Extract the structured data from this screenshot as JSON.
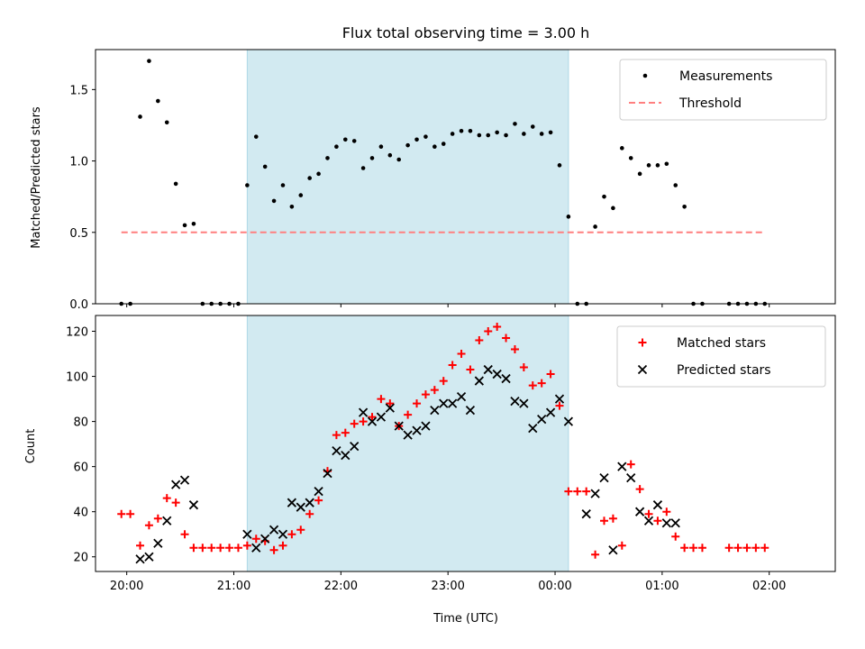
{
  "chart_data": {
    "type": "scatter",
    "title": "Flux total observing time = 3.00 h",
    "xlabel": "Time (UTC)",
    "x_unit": "minutes after 20:00 UTC",
    "xlim": [
      -17.5,
      397
    ],
    "xticks": [
      {
        "value": 0,
        "label": "20:00"
      },
      {
        "value": 60,
        "label": "21:00"
      },
      {
        "value": 120,
        "label": "22:00"
      },
      {
        "value": 180,
        "label": "23:00"
      },
      {
        "value": 240,
        "label": "00:00"
      },
      {
        "value": 300,
        "label": "01:00"
      },
      {
        "value": 360,
        "label": "02:00"
      }
    ],
    "observing_window": {
      "start": 67.5,
      "end": 247.5,
      "color": "#add8e6"
    },
    "panels": [
      {
        "ylabel": "Matched/Predicted stars",
        "ylim": [
          0,
          1.78
        ],
        "yticks": [
          {
            "value": 0,
            "label": "0.0"
          },
          {
            "value": 0.5,
            "label": "0.5"
          },
          {
            "value": 1.0,
            "label": "1.0"
          },
          {
            "value": 1.5,
            "label": "1.5"
          }
        ],
        "legend": {
          "position": "top-right"
        },
        "series": [
          {
            "name": "Measurements",
            "marker": "dot",
            "color": "#000000",
            "points": [
              [
                -3,
                0
              ],
              [
                2,
                0
              ],
              [
                7.5,
                1.31
              ],
              [
                12.5,
                1.7
              ],
              [
                17.5,
                1.42
              ],
              [
                22.5,
                1.27
              ],
              [
                27.5,
                0.84
              ],
              [
                32.5,
                0.55
              ],
              [
                37.5,
                0.56
              ],
              [
                42.5,
                0
              ],
              [
                47.5,
                0
              ],
              [
                52.5,
                0
              ],
              [
                57.5,
                0
              ],
              [
                62.5,
                0
              ],
              [
                67.5,
                0.83
              ],
              [
                72.5,
                1.17
              ],
              [
                77.5,
                0.96
              ],
              [
                82.5,
                0.72
              ],
              [
                87.5,
                0.83
              ],
              [
                92.5,
                0.68
              ],
              [
                97.5,
                0.76
              ],
              [
                102.5,
                0.88
              ],
              [
                107.5,
                0.91
              ],
              [
                112.5,
                1.02
              ],
              [
                117.5,
                1.1
              ],
              [
                122.5,
                1.15
              ],
              [
                127.5,
                1.14
              ],
              [
                132.5,
                0.95
              ],
              [
                137.5,
                1.02
              ],
              [
                142.5,
                1.1
              ],
              [
                147.5,
                1.04
              ],
              [
                152.5,
                1.01
              ],
              [
                157.5,
                1.11
              ],
              [
                162.5,
                1.15
              ],
              [
                167.5,
                1.17
              ],
              [
                172.5,
                1.1
              ],
              [
                177.5,
                1.12
              ],
              [
                182.5,
                1.19
              ],
              [
                187.5,
                1.21
              ],
              [
                192.5,
                1.21
              ],
              [
                197.5,
                1.18
              ],
              [
                202.5,
                1.18
              ],
              [
                207.5,
                1.2
              ],
              [
                212.5,
                1.18
              ],
              [
                217.5,
                1.26
              ],
              [
                222.5,
                1.19
              ],
              [
                227.5,
                1.24
              ],
              [
                232.5,
                1.19
              ],
              [
                237.5,
                1.2
              ],
              [
                242.5,
                0.97
              ],
              [
                247.5,
                0.61
              ],
              [
                252.5,
                0
              ],
              [
                257.5,
                0
              ],
              [
                262.5,
                0.54
              ],
              [
                267.5,
                0.75
              ],
              [
                272.5,
                0.67
              ],
              [
                277.5,
                1.09
              ],
              [
                282.5,
                1.02
              ],
              [
                287.5,
                0.91
              ],
              [
                292.5,
                0.97
              ],
              [
                297.5,
                0.97
              ],
              [
                302.5,
                0.98
              ],
              [
                307.5,
                0.83
              ],
              [
                312.5,
                0.68
              ],
              [
                317.5,
                0
              ],
              [
                322.5,
                0
              ],
              [
                337.5,
                0
              ],
              [
                342.5,
                0
              ],
              [
                347.5,
                0
              ],
              [
                352.5,
                0
              ],
              [
                357.5,
                0
              ]
            ]
          },
          {
            "name": "Threshold",
            "marker": "dashed-line",
            "color": "#ff7f7f",
            "points": [
              [
                -3,
                0.5
              ],
              [
                357.5,
                0.5
              ]
            ]
          }
        ]
      },
      {
        "ylabel": "Count",
        "ylim": [
          13.5,
          127
        ],
        "yticks": [
          {
            "value": 20,
            "label": "20"
          },
          {
            "value": 40,
            "label": "40"
          },
          {
            "value": 60,
            "label": "60"
          },
          {
            "value": 80,
            "label": "80"
          },
          {
            "value": 100,
            "label": "100"
          },
          {
            "value": 120,
            "label": "120"
          }
        ],
        "legend": {
          "position": "top-right"
        },
        "series": [
          {
            "name": "Matched stars",
            "marker": "plus",
            "color": "#ff0000",
            "points": [
              [
                -3,
                39
              ],
              [
                2,
                39
              ],
              [
                7.5,
                25
              ],
              [
                12.5,
                34
              ],
              [
                17.5,
                37
              ],
              [
                22.5,
                46
              ],
              [
                27.5,
                44
              ],
              [
                32.5,
                30
              ],
              [
                37.5,
                24
              ],
              [
                42.5,
                24
              ],
              [
                47.5,
                24
              ],
              [
                52.5,
                24
              ],
              [
                57.5,
                24
              ],
              [
                62.5,
                24
              ],
              [
                67.5,
                25
              ],
              [
                72.5,
                28
              ],
              [
                77.5,
                27
              ],
              [
                82.5,
                23
              ],
              [
                87.5,
                25
              ],
              [
                92.5,
                30
              ],
              [
                97.5,
                32
              ],
              [
                102.5,
                39
              ],
              [
                107.5,
                45
              ],
              [
                112.5,
                58
              ],
              [
                117.5,
                74
              ],
              [
                122.5,
                75
              ],
              [
                127.5,
                79
              ],
              [
                132.5,
                80
              ],
              [
                137.5,
                82
              ],
              [
                142.5,
                90
              ],
              [
                147.5,
                88
              ],
              [
                152.5,
                78
              ],
              [
                157.5,
                83
              ],
              [
                162.5,
                88
              ],
              [
                167.5,
                92
              ],
              [
                172.5,
                94
              ],
              [
                177.5,
                98
              ],
              [
                182.5,
                105
              ],
              [
                187.5,
                110
              ],
              [
                192.5,
                103
              ],
              [
                197.5,
                116
              ],
              [
                202.5,
                120
              ],
              [
                207.5,
                122
              ],
              [
                212.5,
                117
              ],
              [
                217.5,
                112
              ],
              [
                222.5,
                104
              ],
              [
                227.5,
                96
              ],
              [
                232.5,
                97
              ],
              [
                237.5,
                101
              ],
              [
                242.5,
                87
              ],
              [
                247.5,
                49
              ],
              [
                252.5,
                49
              ],
              [
                257.5,
                49
              ],
              [
                262.5,
                21
              ],
              [
                267.5,
                36
              ],
              [
                272.5,
                37
              ],
              [
                277.5,
                25
              ],
              [
                282.5,
                61
              ],
              [
                287.5,
                50
              ],
              [
                292.5,
                39
              ],
              [
                297.5,
                36
              ],
              [
                302.5,
                40
              ],
              [
                307.5,
                29
              ],
              [
                312.5,
                24
              ],
              [
                317.5,
                24
              ],
              [
                322.5,
                24
              ],
              [
                337.5,
                24
              ],
              [
                342.5,
                24
              ],
              [
                347.5,
                24
              ],
              [
                352.5,
                24
              ],
              [
                357.5,
                24
              ]
            ]
          },
          {
            "name": "Predicted stars",
            "marker": "x",
            "color": "#000000",
            "points": [
              [
                7.5,
                19
              ],
              [
                12.5,
                20
              ],
              [
                17.5,
                26
              ],
              [
                22.5,
                36
              ],
              [
                27.5,
                52
              ],
              [
                32.5,
                54
              ],
              [
                37.5,
                43
              ],
              [
                67.5,
                30
              ],
              [
                72.5,
                24
              ],
              [
                77.5,
                28
              ],
              [
                82.5,
                32
              ],
              [
                87.5,
                30
              ],
              [
                92.5,
                44
              ],
              [
                97.5,
                42
              ],
              [
                102.5,
                44
              ],
              [
                107.5,
                49
              ],
              [
                112.5,
                57
              ],
              [
                117.5,
                67
              ],
              [
                122.5,
                65
              ],
              [
                127.5,
                69
              ],
              [
                132.5,
                84
              ],
              [
                137.5,
                80
              ],
              [
                142.5,
                82
              ],
              [
                147.5,
                86
              ],
              [
                152.5,
                78
              ],
              [
                157.5,
                74
              ],
              [
                162.5,
                76
              ],
              [
                167.5,
                78
              ],
              [
                172.5,
                85
              ],
              [
                177.5,
                88
              ],
              [
                182.5,
                88
              ],
              [
                187.5,
                91
              ],
              [
                192.5,
                85
              ],
              [
                197.5,
                98
              ],
              [
                202.5,
                103
              ],
              [
                207.5,
                101
              ],
              [
                212.5,
                99
              ],
              [
                217.5,
                89
              ],
              [
                222.5,
                88
              ],
              [
                227.5,
                77
              ],
              [
                232.5,
                81
              ],
              [
                237.5,
                84
              ],
              [
                242.5,
                90
              ],
              [
                247.5,
                80
              ],
              [
                257.5,
                39
              ],
              [
                262.5,
                48
              ],
              [
                267.5,
                55
              ],
              [
                272.5,
                23
              ],
              [
                277.5,
                60
              ],
              [
                282.5,
                55
              ],
              [
                287.5,
                40
              ],
              [
                292.5,
                36
              ],
              [
                297.5,
                43
              ],
              [
                302.5,
                35
              ],
              [
                307.5,
                35
              ]
            ]
          }
        ]
      }
    ]
  }
}
